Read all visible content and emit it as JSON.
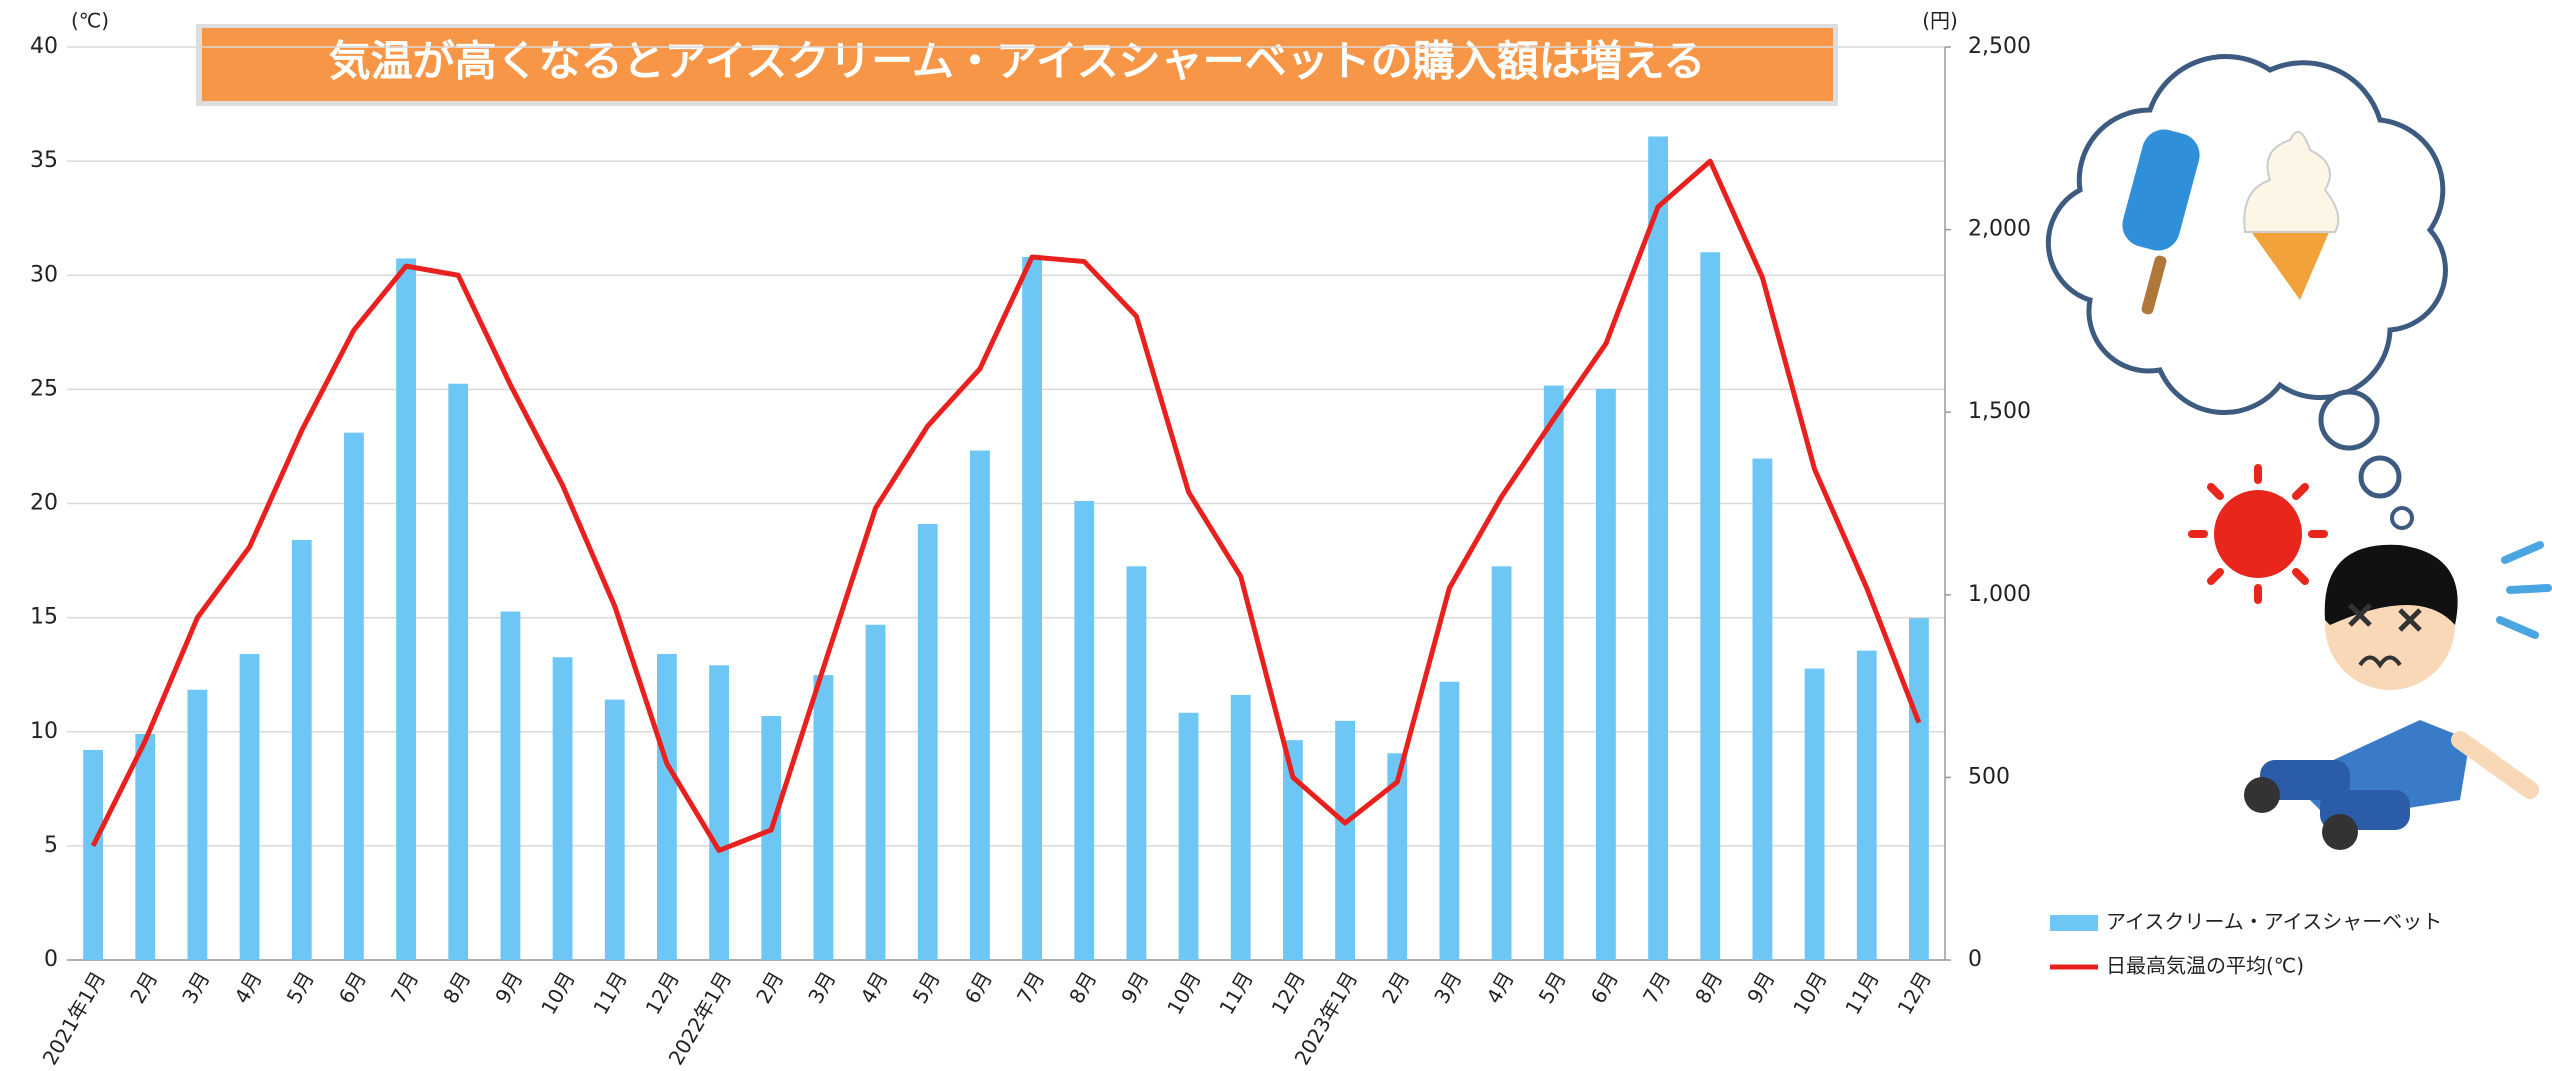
{
  "chart_data": {
    "type": "combo",
    "title": "気温が高くなるとアイスクリーム・アイスシャーベットの購入額は増える",
    "y_label": "(℃)",
    "y2_label": "(円)",
    "categories": [
      "2021年1月",
      "2月",
      "3月",
      "4月",
      "5月",
      "6月",
      "7月",
      "8月",
      "9月",
      "10月",
      "11月",
      "12月",
      "2022年1月",
      "2月",
      "3月",
      "4月",
      "5月",
      "6月",
      "7月",
      "8月",
      "9月",
      "10月",
      "11月",
      "12月",
      "2023年1月",
      "2月",
      "3月",
      "4月",
      "5月",
      "6月",
      "7月",
      "8月",
      "9月",
      "10月",
      "11月",
      "12月"
    ],
    "series": [
      {
        "name": "アイスクリーム・アイスシャーベット",
        "type": "bar",
        "axis": "y2",
        "color": "#6ec6f4",
        "values": [
          575,
          619,
          740,
          838,
          1150,
          1444,
          1921,
          1578,
          954,
          829,
          713,
          838,
          807,
          668,
          780,
          918,
          1194,
          1395,
          1925,
          1257,
          1078,
          677,
          726,
          602,
          655,
          566,
          762,
          1078,
          1573,
          1564,
          2255,
          1938,
          1373,
          798,
          847,
          936
        ]
      },
      {
        "name": "日最高気温の平均(℃)",
        "type": "line",
        "color": "#e8211e",
        "values": [
          5.0,
          9.6,
          15.0,
          18.1,
          23.2,
          27.6,
          30.4,
          30.0,
          25.2,
          20.8,
          15.5,
          8.6,
          4.8,
          5.7,
          12.8,
          19.8,
          23.4,
          25.9,
          30.8,
          30.6,
          28.2,
          20.5,
          16.8,
          8.0,
          6.0,
          7.8,
          16.3,
          20.3,
          23.7,
          27.0,
          33.0,
          35.0,
          29.9,
          21.5,
          16.3,
          10.4
        ]
      }
    ],
    "ylim": [
      0,
      40
    ],
    "yticks": [
      0,
      5,
      10,
      15,
      20,
      25,
      30,
      35,
      40
    ],
    "y2lim": [
      0,
      2500
    ],
    "y2ticks": [
      0,
      500,
      {
        "value": 1000,
        "label": "1,000"
      },
      {
        "value": 1500,
        "label": "1,500"
      },
      {
        "value": 2000,
        "label": "2,000"
      },
      {
        "value": 2500,
        "label": "2,500"
      }
    ],
    "grid": true,
    "legend": "right"
  }
}
